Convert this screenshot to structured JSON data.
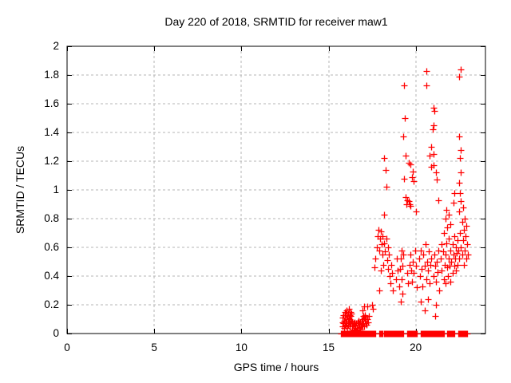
{
  "window": {
    "background": "#ffffff",
    "frame_color": "#000000",
    "text_color": "#000000"
  },
  "chart_data": {
    "type": "scatter",
    "title": "Day 220 of 2018, SRMTID for receiver maw1",
    "xlabel": "GPS time / hours",
    "ylabel": "SRMTID / TECUs",
    "xlim": [
      0,
      24
    ],
    "ylim": [
      0,
      2
    ],
    "grid": true,
    "grid_color": "#b5b5b5",
    "legend": "none",
    "marker": {
      "shape": "plus",
      "color": "#ff0000",
      "size": 8
    },
    "x_ticks": {
      "values": [
        0,
        5,
        10,
        15,
        20
      ],
      "labels": [
        "0",
        "5",
        "10",
        "15",
        "20"
      ]
    },
    "y_ticks": {
      "values": [
        0,
        0.2,
        0.4,
        0.6,
        0.8,
        1,
        1.2,
        1.4,
        1.6,
        1.8,
        2
      ],
      "labels": [
        "0",
        "0.2",
        "0.4",
        "0.6",
        "0.8",
        "1",
        "1.2",
        "1.4",
        "1.6",
        "1.8",
        "2"
      ]
    },
    "zero_line_runs": {
      "y": 0,
      "spacing_hours": 0.04,
      "segments": [
        [
          15.72,
          17.68
        ],
        [
          17.91,
          18.09
        ],
        [
          18.18,
          19.33
        ],
        [
          19.51,
          20.1
        ],
        [
          20.29,
          21.62
        ],
        [
          21.8,
          22.21
        ],
        [
          22.44,
          22.99
        ]
      ]
    },
    "points": [
      [
        15.78,
        0.08
      ],
      [
        15.8,
        0.05
      ],
      [
        15.82,
        0.11
      ],
      [
        15.85,
        0.07
      ],
      [
        15.87,
        0.13
      ],
      [
        15.88,
        0.04
      ],
      [
        15.9,
        0.09
      ],
      [
        15.92,
        0.15
      ],
      [
        15.93,
        0.06
      ],
      [
        15.95,
        0.11
      ],
      [
        15.97,
        0.08
      ],
      [
        15.98,
        0.14
      ],
      [
        16.0,
        0.05
      ],
      [
        16.02,
        0.1
      ],
      [
        16.03,
        0.16
      ],
      [
        16.05,
        0.07
      ],
      [
        16.07,
        0.12
      ],
      [
        16.08,
        0.04
      ],
      [
        16.1,
        0.09
      ],
      [
        16.12,
        0.14
      ],
      [
        16.13,
        0.06
      ],
      [
        16.15,
        0.11
      ],
      [
        16.17,
        0.17
      ],
      [
        16.18,
        0.08
      ],
      [
        16.2,
        0.13
      ],
      [
        16.22,
        0.05
      ],
      [
        16.23,
        0.1
      ],
      [
        16.25,
        0.15
      ],
      [
        16.27,
        0.07
      ],
      [
        16.28,
        0.12
      ],
      [
        16.3,
        0.09
      ],
      [
        16.32,
        0.14
      ],
      [
        16.33,
        0.05
      ],
      [
        16.35,
        0.08
      ],
      [
        16.37,
        0.03
      ],
      [
        16.4,
        0.06
      ],
      [
        16.42,
        0.02
      ],
      [
        16.45,
        0.07
      ],
      [
        16.47,
        0.04
      ],
      [
        16.5,
        0.08
      ],
      [
        16.52,
        0.03
      ],
      [
        16.55,
        0.06
      ],
      [
        16.57,
        0.02
      ],
      [
        16.6,
        0.07
      ],
      [
        16.62,
        0.04
      ],
      [
        16.65,
        0.08
      ],
      [
        16.67,
        0.03
      ],
      [
        16.7,
        0.06
      ],
      [
        16.72,
        0.09
      ],
      [
        16.75,
        0.04
      ],
      [
        16.77,
        0.07
      ],
      [
        16.8,
        0.03
      ],
      [
        16.82,
        0.08
      ],
      [
        16.85,
        0.05
      ],
      [
        16.88,
        0.09
      ],
      [
        16.9,
        0.06
      ],
      [
        16.93,
        0.1
      ],
      [
        16.95,
        0.05
      ],
      [
        16.98,
        0.12
      ],
      [
        17.0,
        0.07
      ],
      [
        17.03,
        0.11
      ],
      [
        17.05,
        0.05
      ],
      [
        17.08,
        0.09
      ],
      [
        17.1,
        0.13
      ],
      [
        17.13,
        0.07
      ],
      [
        17.15,
        0.11
      ],
      [
        17.18,
        0.06
      ],
      [
        17.2,
        0.1
      ],
      [
        17.25,
        0.08
      ],
      [
        17.3,
        0.12
      ],
      [
        16.95,
        0.16
      ],
      [
        17.05,
        0.19
      ],
      [
        17.2,
        0.19
      ],
      [
        17.5,
        0.2
      ],
      [
        17.55,
        0.17
      ],
      [
        17.65,
        0.46
      ],
      [
        17.7,
        0.52
      ],
      [
        17.75,
        0.6
      ],
      [
        17.8,
        0.68
      ],
      [
        17.85,
        0.72
      ],
      [
        17.9,
        0.58
      ],
      [
        17.9,
        0.3
      ],
      [
        17.95,
        0.66
      ],
      [
        18.0,
        0.71
      ],
      [
        18.0,
        0.44
      ],
      [
        18.05,
        0.62
      ],
      [
        18.1,
        0.55
      ],
      [
        18.1,
        0.68
      ],
      [
        18.15,
        0.48
      ],
      [
        18.2,
        0.63
      ],
      [
        18.2,
        0.83
      ],
      [
        18.25,
        0.57
      ],
      [
        18.27,
        1.14
      ],
      [
        18.3,
        1.02
      ],
      [
        18.2,
        1.22
      ],
      [
        18.3,
        0.66
      ],
      [
        18.35,
        0.51
      ],
      [
        18.4,
        0.6
      ],
      [
        18.4,
        0.45
      ],
      [
        18.45,
        0.55
      ],
      [
        18.5,
        0.4
      ],
      [
        18.55,
        0.35
      ],
      [
        18.6,
        0.48
      ],
      [
        18.65,
        0.42
      ],
      [
        18.7,
        0.3
      ],
      [
        18.85,
        0.38
      ],
      [
        18.9,
        0.52
      ],
      [
        18.95,
        0.44
      ],
      [
        19.05,
        0.33
      ],
      [
        19.1,
        0.45
      ],
      [
        19.15,
        0.22
      ],
      [
        19.15,
        0.52
      ],
      [
        19.2,
        0.38
      ],
      [
        19.2,
        0.58
      ],
      [
        19.25,
        0.28
      ],
      [
        19.25,
        0.47
      ],
      [
        19.3,
        0.55
      ],
      [
        19.3,
        1.37
      ],
      [
        19.32,
        1.73
      ],
      [
        19.36,
        1.5
      ],
      [
        19.35,
        1.08
      ],
      [
        19.4,
        1.24
      ],
      [
        19.4,
        0.95
      ],
      [
        19.45,
        0.9
      ],
      [
        19.5,
        0.93
      ],
      [
        19.5,
        0.42
      ],
      [
        19.55,
        0.35
      ],
      [
        19.6,
        1.19
      ],
      [
        19.6,
        0.92
      ],
      [
        19.65,
        0.9
      ],
      [
        19.65,
        0.48
      ],
      [
        19.7,
        1.18
      ],
      [
        19.7,
        0.89
      ],
      [
        19.7,
        0.55
      ],
      [
        19.75,
        0.44
      ],
      [
        19.8,
        1.09
      ],
      [
        19.8,
        0.36
      ],
      [
        19.85,
        1.13
      ],
      [
        19.85,
        0.5
      ],
      [
        19.9,
        1.06
      ],
      [
        19.9,
        0.42
      ],
      [
        19.95,
        0.58
      ],
      [
        20.0,
        0.85
      ],
      [
        20.0,
        0.47
      ],
      [
        20.05,
        0.32
      ],
      [
        20.2,
        0.52
      ],
      [
        20.25,
        0.4
      ],
      [
        20.3,
        0.58
      ],
      [
        20.3,
        0.22
      ],
      [
        20.35,
        0.45
      ],
      [
        20.4,
        0.33
      ],
      [
        20.45,
        0.55
      ],
      [
        20.5,
        0.47
      ],
      [
        20.5,
        0.16
      ],
      [
        20.55,
        0.62
      ],
      [
        20.6,
        1.83
      ],
      [
        20.6,
        1.73
      ],
      [
        20.6,
        0.38
      ],
      [
        20.65,
        0.5
      ],
      [
        20.7,
        0.44
      ],
      [
        20.7,
        0.24
      ],
      [
        20.75,
        0.57
      ],
      [
        20.8,
        1.24
      ],
      [
        20.8,
        0.35
      ],
      [
        20.85,
        0.48
      ],
      [
        20.9,
        1.3
      ],
      [
        20.9,
        1.16
      ],
      [
        20.9,
        0.52
      ],
      [
        20.97,
        1.42
      ],
      [
        21.0,
        1.57
      ],
      [
        21.02,
        1.45
      ],
      [
        21.0,
        1.25
      ],
      [
        21.0,
        1.17
      ],
      [
        21.0,
        0.4
      ],
      [
        21.05,
        0.55
      ],
      [
        21.06,
        1.55
      ],
      [
        21.1,
        0.47
      ],
      [
        21.1,
        0.12
      ],
      [
        21.15,
        1.12
      ],
      [
        21.15,
        0.36
      ],
      [
        21.15,
        0.2
      ],
      [
        21.2,
        1.07
      ],
      [
        21.2,
        0.5
      ],
      [
        21.25,
        0.43
      ],
      [
        21.3,
        0.93
      ],
      [
        21.3,
        0.58
      ],
      [
        21.35,
        0.3
      ],
      [
        21.45,
        0.52
      ],
      [
        21.5,
        0.44
      ],
      [
        21.5,
        0.62
      ],
      [
        21.55,
        0.57
      ],
      [
        21.6,
        0.38
      ],
      [
        21.6,
        0.7
      ],
      [
        21.65,
        0.48
      ],
      [
        21.7,
        0.8
      ],
      [
        21.7,
        0.55
      ],
      [
        21.7,
        0.35
      ],
      [
        21.75,
        0.86
      ],
      [
        21.75,
        0.63
      ],
      [
        21.8,
        0.74
      ],
      [
        21.8,
        0.46
      ],
      [
        21.85,
        0.4
      ],
      [
        21.9,
        0.83
      ],
      [
        21.9,
        0.52
      ],
      [
        21.9,
        0.66
      ],
      [
        21.95,
        0.47
      ],
      [
        22.0,
        0.76
      ],
      [
        22.0,
        0.58
      ],
      [
        22.0,
        0.36
      ],
      [
        22.05,
        0.5
      ],
      [
        22.1,
        0.62
      ],
      [
        22.1,
        0.42
      ],
      [
        22.15,
        0.91
      ],
      [
        22.15,
        0.55
      ],
      [
        22.2,
        0.98
      ],
      [
        22.2,
        0.47
      ],
      [
        22.2,
        0.68
      ],
      [
        22.25,
        0.52
      ],
      [
        22.3,
        0.6
      ],
      [
        22.3,
        0.44
      ],
      [
        22.35,
        0.56
      ],
      [
        22.4,
        0.48
      ],
      [
        22.4,
        0.65
      ],
      [
        22.45,
        0.58
      ],
      [
        22.5,
        1.79
      ],
      [
        22.5,
        1.37
      ],
      [
        22.5,
        1.05
      ],
      [
        22.5,
        0.85
      ],
      [
        22.5,
        0.52
      ],
      [
        22.55,
        1.22
      ],
      [
        22.55,
        0.98
      ],
      [
        22.55,
        0.7
      ],
      [
        22.57,
        1.84
      ],
      [
        22.6,
        1.28
      ],
      [
        22.6,
        1.12
      ],
      [
        22.6,
        0.92
      ],
      [
        22.6,
        0.6
      ],
      [
        22.65,
        0.78
      ],
      [
        22.65,
        0.55
      ],
      [
        22.7,
        0.88
      ],
      [
        22.7,
        0.65
      ],
      [
        22.75,
        0.72
      ],
      [
        22.75,
        0.48
      ],
      [
        22.8,
        0.8
      ],
      [
        22.8,
        0.58
      ],
      [
        22.85,
        0.68
      ],
      [
        22.9,
        0.75
      ],
      [
        22.9,
        0.52
      ],
      [
        22.95,
        0.62
      ],
      [
        23.0,
        0.55
      ]
    ]
  }
}
